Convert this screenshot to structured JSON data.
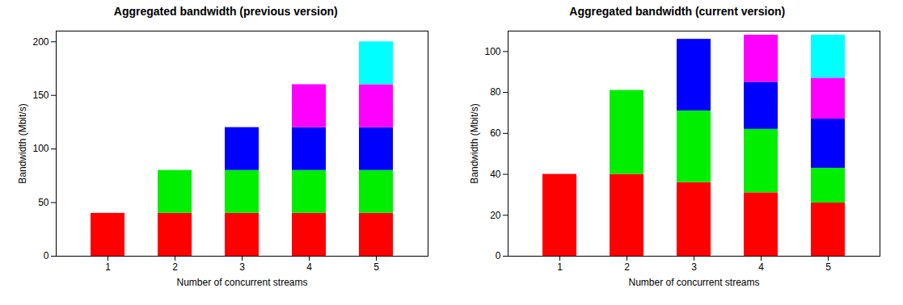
{
  "chart_data": [
    {
      "type": "bar",
      "title": "Aggregated bandwidth (previous version)",
      "xlabel": "Number of concurrent streams",
      "ylabel": "Bandwidth (Mbit/s)",
      "categories": [
        "1",
        "2",
        "3",
        "4",
        "5"
      ],
      "stacked": true,
      "grid": false,
      "series": [
        {
          "color": "#ff0000",
          "values": [
            40,
            40,
            40,
            40,
            40
          ]
        },
        {
          "color": "#00ee00",
          "values": [
            0,
            40,
            40,
            40,
            40
          ]
        },
        {
          "color": "#0000ff",
          "values": [
            0,
            0,
            40,
            40,
            40
          ]
        },
        {
          "color": "#ff00ff",
          "values": [
            0,
            0,
            0,
            40,
            40
          ]
        },
        {
          "color": "#00ffff",
          "values": [
            0,
            0,
            0,
            0,
            40
          ]
        }
      ],
      "ylim": [
        0,
        210
      ],
      "yticks": [
        0,
        50,
        100,
        150,
        200
      ]
    },
    {
      "type": "bar",
      "title": "Aggregated bandwidth (current version)",
      "xlabel": "Number of concurrent streams",
      "ylabel": "Bandwidth (Mbit/s)",
      "categories": [
        "1",
        "2",
        "3",
        "4",
        "5"
      ],
      "stacked": true,
      "grid": false,
      "series": [
        {
          "color": "#ff0000",
          "values": [
            40,
            40,
            36,
            31,
            26
          ]
        },
        {
          "color": "#00ee00",
          "values": [
            0,
            41,
            35,
            31,
            17
          ]
        },
        {
          "color": "#0000ff",
          "values": [
            0,
            0,
            35,
            23,
            24
          ]
        },
        {
          "color": "#ff00ff",
          "values": [
            0,
            0,
            0,
            23,
            20
          ]
        },
        {
          "color": "#00ffff",
          "values": [
            0,
            0,
            0,
            0,
            21
          ]
        }
      ],
      "ylim": [
        0,
        110
      ],
      "yticks": [
        0,
        20,
        40,
        60,
        80,
        100
      ]
    }
  ]
}
